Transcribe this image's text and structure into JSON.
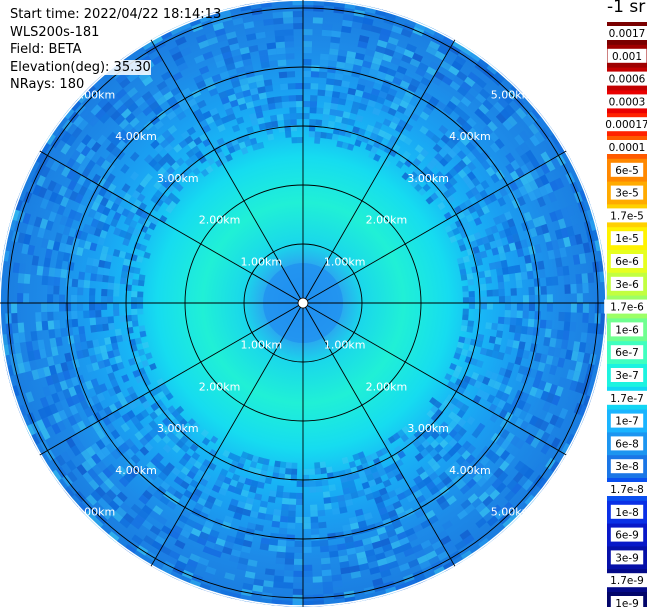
{
  "info": {
    "start_time": "Start time: 2022/04/22 18:14:13",
    "instrument": "WLS200s-181",
    "field": "Field: BETA",
    "elevation": "Elevation(deg): 35.30",
    "nrays": "NRays: 180"
  },
  "colorbar": {
    "unit_label": "-1 sr",
    "entries": [
      {
        "label": "0.0017",
        "color": "#7a0000"
      },
      {
        "label": "0.001",
        "color": "#9e0000"
      },
      {
        "label": "0.0006",
        "color": "#c40000"
      },
      {
        "label": "0.0003",
        "color": "#ea0000"
      },
      {
        "label": "0.00017",
        "color": "#ff2200"
      },
      {
        "label": "0.0001",
        "color": "#ff5a00"
      },
      {
        "label": "6e-5",
        "color": "#ff8800"
      },
      {
        "label": "3e-5",
        "color": "#ffaa00"
      },
      {
        "label": "1.7e-5",
        "color": "#ffd000"
      },
      {
        "label": "1e-5",
        "color": "#fff200"
      },
      {
        "label": "6e-6",
        "color": "#e6ff20"
      },
      {
        "label": "3e-6",
        "color": "#c2ff40"
      },
      {
        "label": "1.7e-6",
        "color": "#9cff66"
      },
      {
        "label": "1e-6",
        "color": "#70ff90"
      },
      {
        "label": "6e-7",
        "color": "#40ffbf"
      },
      {
        "label": "3e-7",
        "color": "#1cf3e0"
      },
      {
        "label": "1.7e-7",
        "color": "#12d6f4"
      },
      {
        "label": "1e-7",
        "color": "#1ab4ff"
      },
      {
        "label": "6e-8",
        "color": "#1c95f0"
      },
      {
        "label": "3e-8",
        "color": "#1a76e6"
      },
      {
        "label": "1.7e-8",
        "color": "#0a50f0"
      },
      {
        "label": "1e-8",
        "color": "#0a30e6"
      },
      {
        "label": "6e-9",
        "color": "#0818c8"
      },
      {
        "label": "3e-9",
        "color": "#0610a8"
      },
      {
        "label": "1.7e-9",
        "color": "#040a88"
      },
      {
        "label": "1e-9",
        "color": "#02056a"
      }
    ]
  },
  "chart_data": {
    "type": "heatmap",
    "projection": "polar-ppi",
    "field": "BETA",
    "rings_km": [
      1,
      2,
      3,
      4,
      5
    ],
    "ring_labels": [
      "1.00km",
      "2.00km",
      "3.00km",
      "4.00km",
      "5.00km"
    ],
    "max_range_km": 5.1,
    "spoke_angles_deg": [
      0,
      30,
      60,
      90,
      120,
      150,
      180,
      210,
      240,
      270,
      300,
      330
    ],
    "nrays": 180,
    "range_profile": [
      {
        "range_km": 0.0,
        "value": "1e-7"
      },
      {
        "range_km": 1.0,
        "value": "3e-7"
      },
      {
        "range_km": 2.0,
        "value": "3e-7"
      },
      {
        "range_km": 2.6,
        "value": "1.7e-7"
      },
      {
        "range_km": 3.5,
        "value": "1e-7"
      },
      {
        "range_km": 5.0,
        "value": "6e-8"
      }
    ]
  }
}
